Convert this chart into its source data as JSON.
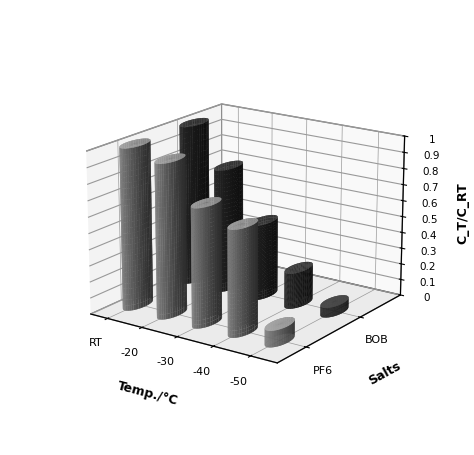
{
  "temp_labels": [
    "RT",
    "-20",
    "-30",
    "-40",
    "-50"
  ],
  "salt_labels": [
    "BOB",
    "PF6"
  ],
  "values": {
    "BOB": [
      1.0,
      0.77,
      0.47,
      0.22,
      0.06
    ],
    "PF6": [
      1.0,
      0.95,
      0.73,
      0.65,
      0.1
    ]
  },
  "bob_color_side": "#2a2a2a",
  "bob_color_top": "#444444",
  "bob_color_shadow": "#1a1a1a",
  "pf6_color_side": "#888888",
  "pf6_color_top": "#aaaaaa",
  "pf6_color_shadow": "#666666",
  "ylabel": "C_T/C_RT",
  "xlabel": "Temp./°C",
  "zlabel": "Salts",
  "yticks": [
    0.0,
    0.1,
    0.2,
    0.3,
    0.4,
    0.5,
    0.6,
    0.7,
    0.8,
    0.9,
    1.0
  ],
  "wall_color": "#f5f5f5",
  "floor_color": "#d8d8d8",
  "elev": 18,
  "azim": -55
}
